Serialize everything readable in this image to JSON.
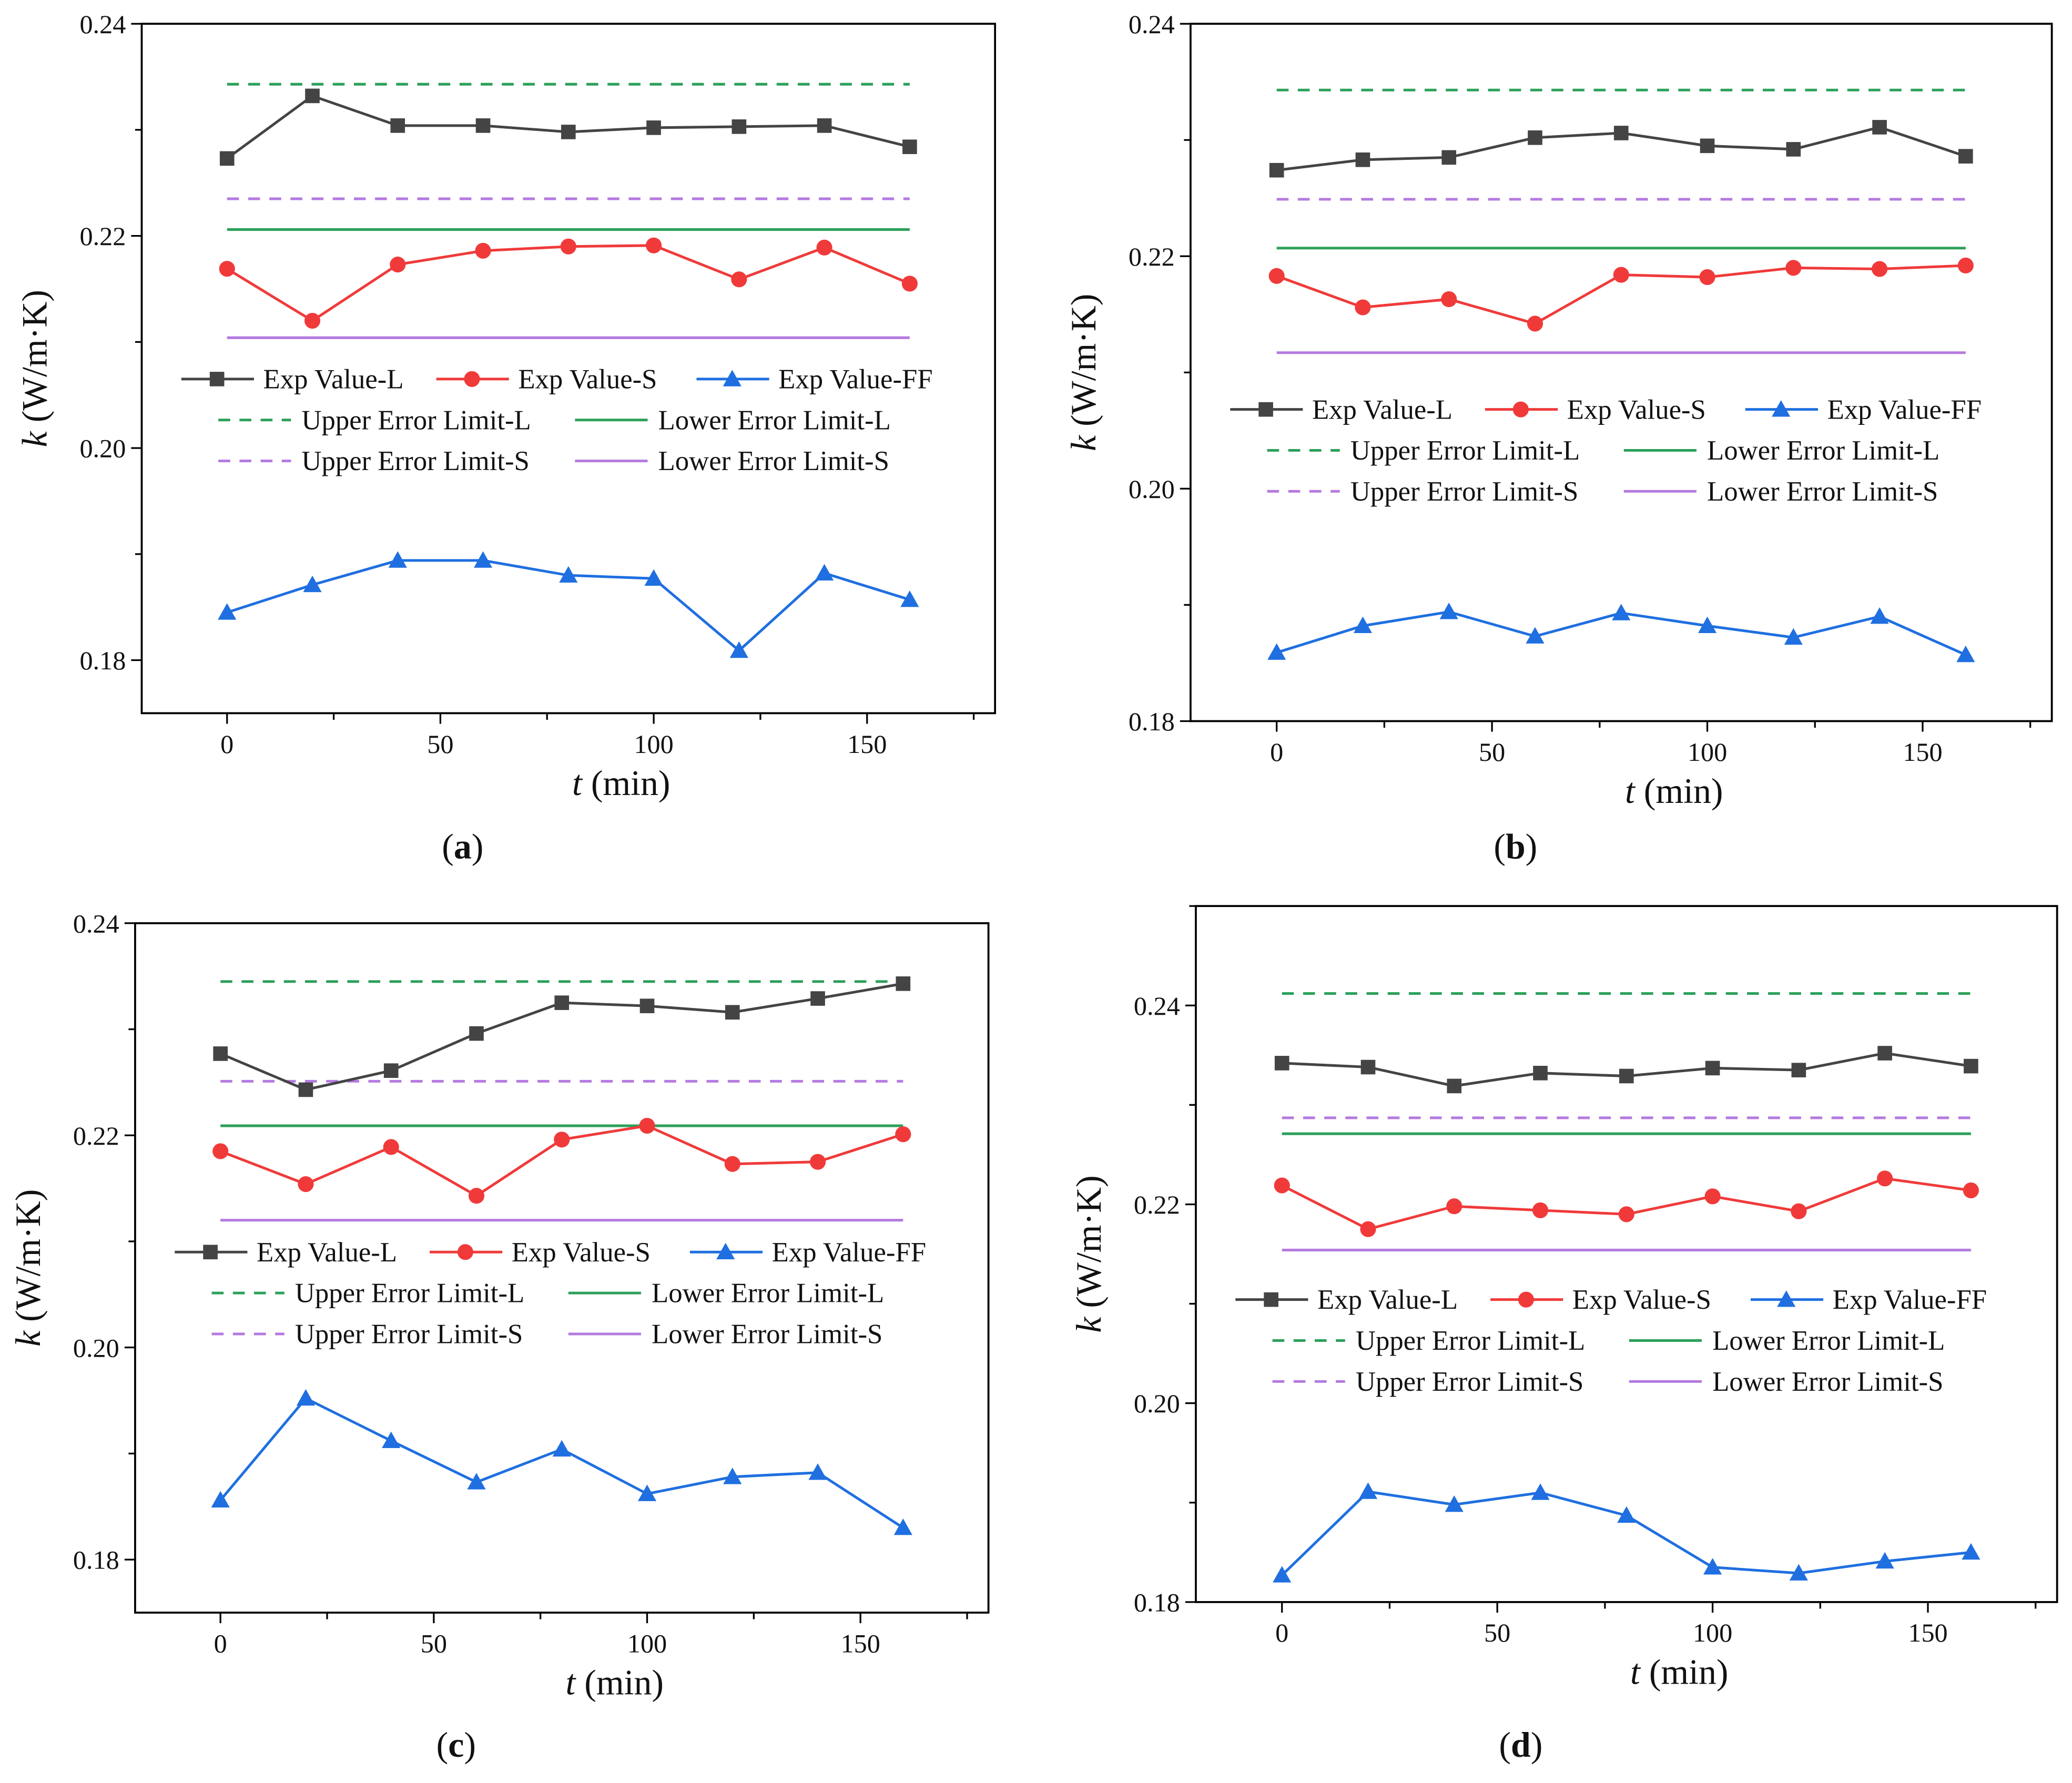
{
  "colors": {
    "exp_l": "#444444",
    "exp_s": "#f03a3a",
    "exp_ff": "#1f6fe0",
    "limit_l": "#2ca05a",
    "limit_s": "#b47ae0"
  },
  "chart_data": [
    {
      "type": "line",
      "caption": "(a)",
      "caption_letter": "a",
      "xlabel_var": "t",
      "xlabel_unit": " (min)",
      "ylabel_var": "k",
      "ylabel_unit": " (W/m·K)",
      "xlim": [
        -20,
        180
      ],
      "ylim": [
        0.175,
        0.24
      ],
      "xticks": [
        0,
        50,
        100,
        150
      ],
      "yticks": [
        0.18,
        0.2,
        0.22,
        0.24
      ],
      "ytick_labels": [
        "0.18",
        "0.20",
        "0.22",
        "0.24"
      ],
      "x": [
        0,
        20,
        40,
        60,
        80,
        100,
        120,
        140,
        160
      ],
      "series": [
        {
          "name": "Exp Value-L",
          "values": [
            0.2273,
            0.2332,
            0.2304,
            0.2304,
            0.2298,
            0.2302,
            0.2303,
            0.2304,
            0.2284
          ]
        },
        {
          "name": "Exp Value-S",
          "values": [
            0.2169,
            0.212,
            0.2173,
            0.2186,
            0.219,
            0.2191,
            0.2159,
            0.2189,
            0.2155
          ]
        },
        {
          "name": "Exp Value-FF",
          "values": [
            0.1845,
            0.1871,
            0.1894,
            0.1894,
            0.188,
            0.1877,
            0.1809,
            0.1882,
            0.1857
          ]
        }
      ],
      "limits": [
        {
          "name": "Upper Error Limit-L",
          "value": 0.2343
        },
        {
          "name": "Lower Error Limit-L",
          "value": 0.2206
        },
        {
          "name": "Upper Error Limit-S",
          "value": 0.2235
        },
        {
          "name": "Lower Error Limit-S",
          "value": 0.2104
        }
      ],
      "legend": "center"
    },
    {
      "type": "line",
      "caption": "(b)",
      "caption_letter": "b",
      "xlabel_var": "t",
      "xlabel_unit": " (min)",
      "ylabel_var": "k",
      "ylabel_unit": " (W/m·K)",
      "xlim": [
        -20,
        180
      ],
      "ylim": [
        0.18,
        0.24
      ],
      "xticks": [
        0,
        50,
        100,
        150
      ],
      "yticks": [
        0.18,
        0.2,
        0.22,
        0.24
      ],
      "ytick_labels": [
        "0.18",
        "0.20",
        "0.22",
        "0.24"
      ],
      "x": [
        0,
        20,
        40,
        60,
        80,
        100,
        120,
        140,
        160
      ],
      "series": [
        {
          "name": "Exp Value-L",
          "values": [
            0.2274,
            0.2283,
            0.2285,
            0.2302,
            0.2306,
            0.2295,
            0.2292,
            0.2311,
            0.2286
          ]
        },
        {
          "name": "Exp Value-S",
          "values": [
            0.2183,
            0.2156,
            0.2163,
            0.2142,
            0.2184,
            0.2182,
            0.219,
            0.2189,
            0.2192
          ]
        },
        {
          "name": "Exp Value-FF",
          "values": [
            0.1859,
            0.1882,
            0.1894,
            0.1873,
            0.1893,
            0.1882,
            0.1872,
            0.189,
            0.1857
          ]
        }
      ],
      "limits": [
        {
          "name": "Upper Error Limit-L",
          "value": 0.2343
        },
        {
          "name": "Lower Error Limit-L",
          "value": 0.2207
        },
        {
          "name": "Upper Error Limit-S",
          "value": 0.2249
        },
        {
          "name": "Lower Error Limit-S",
          "value": 0.2117
        }
      ],
      "legend": "center"
    },
    {
      "type": "line",
      "caption": "(c)",
      "caption_letter": "c",
      "xlabel_var": "t",
      "xlabel_unit": " (min)",
      "ylabel_var": "k",
      "ylabel_unit": " (W/m·K)",
      "xlim": [
        -20,
        180
      ],
      "ylim": [
        0.175,
        0.24
      ],
      "xticks": [
        0,
        50,
        100,
        150
      ],
      "yticks": [
        0.18,
        0.2,
        0.22,
        0.24
      ],
      "ytick_labels": [
        "0.18",
        "0.20",
        "0.22",
        "0.24"
      ],
      "x": [
        0,
        20,
        40,
        60,
        80,
        100,
        120,
        140,
        160
      ],
      "series": [
        {
          "name": "Exp Value-L",
          "values": [
            0.2277,
            0.2243,
            0.2261,
            0.2296,
            0.2325,
            0.2322,
            0.2316,
            0.2329,
            0.2343
          ]
        },
        {
          "name": "Exp Value-S",
          "values": [
            0.2185,
            0.2154,
            0.2189,
            0.2143,
            0.2196,
            0.2209,
            0.2173,
            0.2175,
            0.2201
          ]
        },
        {
          "name": "Exp Value-FF",
          "values": [
            0.1856,
            0.1952,
            0.1912,
            0.1873,
            0.1904,
            0.1862,
            0.1878,
            0.1882,
            0.183
          ]
        }
      ],
      "limits": [
        {
          "name": "Upper Error Limit-L",
          "value": 0.2345
        },
        {
          "name": "Lower Error Limit-L",
          "value": 0.2209
        },
        {
          "name": "Upper Error Limit-S",
          "value": 0.2251
        },
        {
          "name": "Lower Error Limit-S",
          "value": 0.212
        }
      ],
      "legend": "center"
    },
    {
      "type": "line",
      "caption": "(d)",
      "caption_letter": "d",
      "xlabel_var": "t",
      "xlabel_unit": " (min)",
      "ylabel_var": "k",
      "ylabel_unit": " (W/m·K)",
      "xlim": [
        -20,
        180
      ],
      "ylim": [
        0.18,
        0.25
      ],
      "xticks": [
        0,
        50,
        100,
        150
      ],
      "yticks": [
        0.18,
        0.2,
        0.22,
        0.24
      ],
      "ytick_labels": [
        "0.18",
        "0.20",
        "0.22",
        "0.24"
      ],
      "x": [
        0,
        20,
        40,
        60,
        80,
        100,
        120,
        140,
        160
      ],
      "series": [
        {
          "name": "Exp Value-L",
          "values": [
            0.2342,
            0.2338,
            0.2319,
            0.2332,
            0.2329,
            0.2337,
            0.2335,
            0.2352,
            0.2339
          ]
        },
        {
          "name": "Exp Value-S",
          "values": [
            0.2219,
            0.2175,
            0.2198,
            0.2194,
            0.219,
            0.2208,
            0.2193,
            0.2226,
            0.2214
          ]
        },
        {
          "name": "Exp Value-FF",
          "values": [
            0.1827,
            0.1911,
            0.1898,
            0.191,
            0.1887,
            0.1835,
            0.1829,
            0.1841,
            0.185
          ]
        }
      ],
      "limits": [
        {
          "name": "Upper Error Limit-L",
          "value": 0.2412
        },
        {
          "name": "Lower Error Limit-L",
          "value": 0.2271
        },
        {
          "name": "Upper Error Limit-S",
          "value": 0.2287
        },
        {
          "name": "Lower Error Limit-S",
          "value": 0.2154
        }
      ],
      "legend": "center"
    }
  ]
}
